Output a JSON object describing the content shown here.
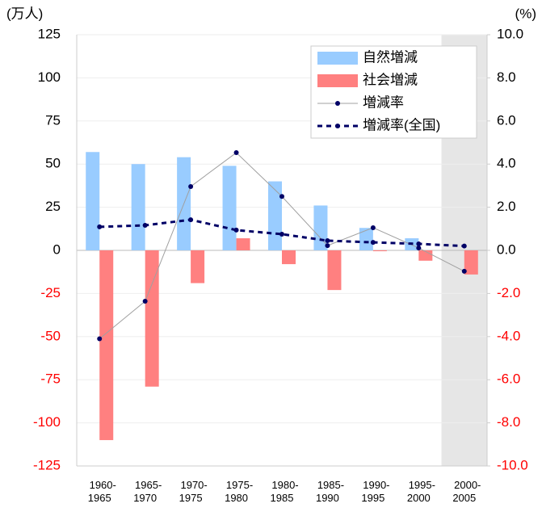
{
  "chart_data": {
    "type": "bar",
    "y_unit": "(万人)",
    "y2_unit": "(%)",
    "categories": [
      "1960-1965",
      "1965-1970",
      "1970-1975",
      "1975-1980",
      "1980-1985",
      "1985-1990",
      "1990-1995",
      "1995-2000",
      "2000-2005"
    ],
    "series": [
      {
        "name": "自然増減",
        "type": "bar",
        "color": "#99ccff",
        "values": [
          57,
          50,
          54,
          49,
          40,
          26,
          13,
          7,
          0
        ]
      },
      {
        "name": "社会増減",
        "type": "bar",
        "color": "#ff8080",
        "values": [
          -110,
          -79,
          -19,
          7,
          -8,
          -23,
          -0.5,
          -6,
          -14
        ]
      },
      {
        "name": "増減率",
        "type": "line",
        "axis": "y2",
        "color": "#a0a0a0",
        "marker_color": "#000066",
        "values": [
          -4.1,
          -2.36,
          2.96,
          4.53,
          2.5,
          0.22,
          1.05,
          0.11,
          -0.97
        ]
      },
      {
        "name": "増減率(全国)",
        "type": "line",
        "axis": "y2",
        "style": "dashed",
        "color": "#000066",
        "marker_color": "#000066",
        "values": [
          1.09,
          1.16,
          1.42,
          0.94,
          0.75,
          0.45,
          0.37,
          0.3,
          0.2
        ]
      }
    ],
    "ylim": [
      -125,
      125
    ],
    "yticks": [
      125,
      100,
      75,
      50,
      25,
      0,
      -25,
      -50,
      -75,
      -100,
      -125
    ],
    "y2lim": [
      -10,
      10
    ],
    "y2ticks": [
      {
        "value": 10,
        "label": "10.0"
      },
      {
        "value": 8,
        "label": "8.0"
      },
      {
        "value": 6,
        "label": "6.0"
      },
      {
        "value": 4,
        "label": "4.0"
      },
      {
        "value": 2,
        "label": "2.0"
      },
      {
        "value": 0,
        "label": "0.0"
      },
      {
        "value": -2,
        "label": "-2.0"
      },
      {
        "value": -4,
        "label": "-4.0"
      },
      {
        "value": -6,
        "label": "-6.0"
      },
      {
        "value": -8,
        "label": "-8.0"
      },
      {
        "value": -10,
        "label": "-10.0"
      }
    ],
    "negative_tick_color": "#ff0000",
    "grid": true,
    "legend": "top-right"
  }
}
